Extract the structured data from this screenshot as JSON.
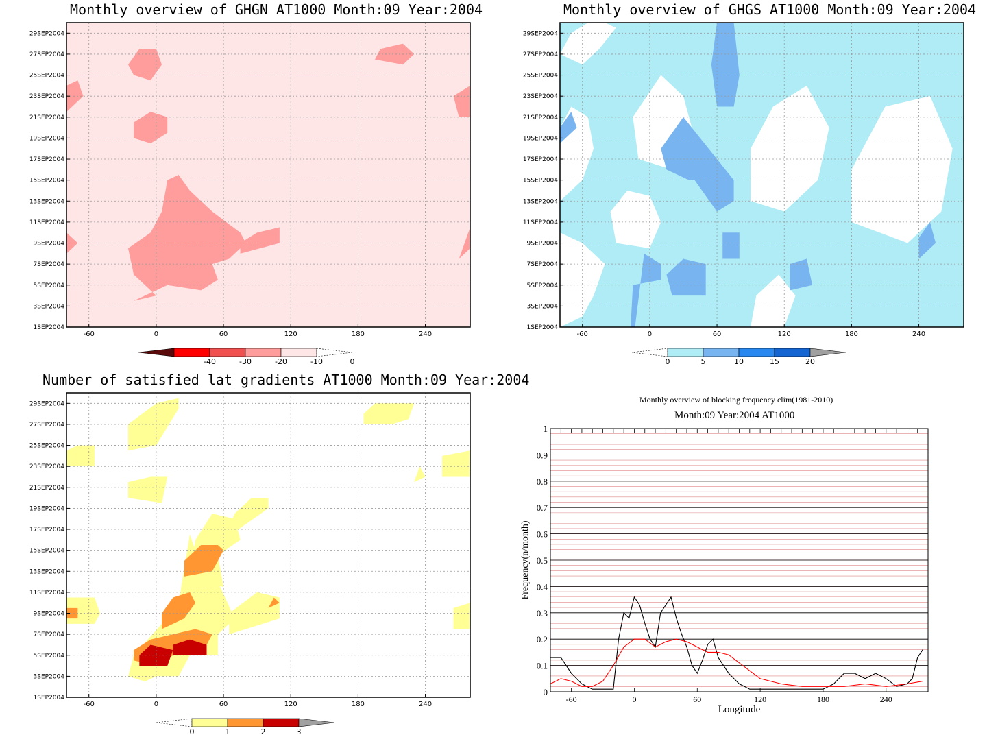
{
  "chart_data": [
    {
      "type": "heatmap",
      "title": "Monthly overview of GHGN AT1000 Month:09 Year:2004",
      "x_ticks": [
        -60,
        0,
        60,
        120,
        180,
        240
      ],
      "xlim": [
        -80,
        280
      ],
      "y_ticks": [
        "1SEP2004",
        "3SEP2004",
        "5SEP2004",
        "7SEP2004",
        "9SEP2004",
        "11SEP2004",
        "13SEP2004",
        "15SEP2004",
        "17SEP2004",
        "19SEP2004",
        "21SEP2004",
        "23SEP2004",
        "25SEP2004",
        "27SEP2004",
        "29SEP2004"
      ],
      "colorbar": {
        "ticks": [
          "-40",
          "-30",
          "-20",
          "-10",
          "0"
        ],
        "colors": [
          "#5a0a0a",
          "#ff0000",
          "#f05050",
          "#ff9c9c",
          "#ffe6e6"
        ]
      },
      "background_color": "#ffe6e6",
      "grid": true,
      "regions": [
        {
          "fill": "#ff9c9c",
          "x": [
            -20,
            10,
            40,
            55,
            50,
            65,
            80,
            75,
            50,
            30,
            20,
            10,
            5,
            -5,
            -25,
            -20,
            -10,
            0
          ],
          "y": [
            3.5,
            5,
            4.5,
            5.5,
            7,
            7.5,
            9,
            10,
            12,
            14,
            15.5,
            15,
            12,
            10,
            8.5,
            6,
            5,
            4
          ]
        },
        {
          "fill": "#ff9c9c",
          "x": [
            -20,
            -5,
            10,
            10,
            -5,
            -20
          ],
          "y": [
            19,
            18.5,
            19.5,
            21,
            21.5,
            20.5
          ]
        },
        {
          "fill": "#ff9c9c",
          "x": [
            -20,
            -5,
            5,
            0,
            -15,
            -25
          ],
          "y": [
            25,
            24.5,
            26,
            27.5,
            27.5,
            26
          ]
        },
        {
          "fill": "#ff9c9c",
          "x": [
            -80,
            -65,
            -70,
            -80
          ],
          "y": [
            21.5,
            23,
            24.5,
            24
          ]
        },
        {
          "fill": "#ff9c9c",
          "x": [
            -80,
            -70,
            -80
          ],
          "y": [
            8,
            9,
            10
          ]
        },
        {
          "fill": "#ff9c9c",
          "x": [
            270,
            280,
            280,
            265
          ],
          "y": [
            21,
            21,
            24,
            23
          ]
        },
        {
          "fill": "#ff9c9c",
          "x": [
            270,
            280,
            280
          ],
          "y": [
            7.5,
            8.5,
            10.5
          ]
        },
        {
          "fill": "#ff9c9c",
          "x": [
            195,
            220,
            230,
            220,
            200
          ],
          "y": [
            26.5,
            26,
            27,
            28,
            27.5
          ]
        },
        {
          "fill": "#ff9c9c",
          "x": [
            75,
            110,
            110,
            90,
            75
          ],
          "y": [
            8,
            9,
            10.5,
            10,
            9
          ]
        },
        {
          "fill": "#ff9c9c",
          "x": [
            0,
            40,
            55,
            40,
            15,
            0
          ],
          "y": [
            9.5,
            9,
            10,
            11.5,
            11,
            10
          ]
        }
      ]
    },
    {
      "type": "heatmap",
      "title": "Monthly overview of GHGS AT1000 Month:09 Year:2004",
      "x_ticks": [
        -60,
        0,
        60,
        120,
        180,
        240
      ],
      "xlim": [
        -80,
        280
      ],
      "y_ticks": [
        "1SEP2004",
        "3SEP2004",
        "5SEP2004",
        "7SEP2004",
        "9SEP2004",
        "11SEP2004",
        "13SEP2004",
        "15SEP2004",
        "17SEP2004",
        "19SEP2004",
        "21SEP2004",
        "23SEP2004",
        "25SEP2004",
        "27SEP2004",
        "29SEP2004"
      ],
      "colorbar": {
        "ticks": [
          "0",
          "5",
          "10",
          "15",
          "20"
        ],
        "colors": [
          "#b0ecf5",
          "#78b4f0",
          "#2888f0",
          "#1464d2",
          "#a0a0a0"
        ]
      },
      "background_color": "#b0ecf5",
      "grid": true,
      "regions": [
        {
          "fill": "#ffffff",
          "x": [
            -80,
            -60,
            -50,
            -55,
            -70,
            -80
          ],
          "y": [
            13,
            15,
            18,
            21,
            22,
            20
          ]
        },
        {
          "fill": "#ffffff",
          "x": [
            -80,
            -60,
            -50,
            -40,
            -60,
            -80
          ],
          "y": [
            1,
            2,
            4,
            7,
            9,
            10
          ]
        },
        {
          "fill": "#ffffff",
          "x": [
            -80,
            -60,
            -45,
            -30,
            -40,
            -55,
            -70
          ],
          "y": [
            27,
            26,
            27.5,
            29.5,
            30,
            30,
            29
          ]
        },
        {
          "fill": "#ffffff",
          "x": [
            -10,
            20,
            40,
            30,
            10,
            -15
          ],
          "y": [
            17,
            16,
            19,
            23,
            25,
            21
          ]
        },
        {
          "fill": "#ffffff",
          "x": [
            90,
            120,
            150,
            160,
            140,
            110,
            90
          ],
          "y": [
            13,
            12,
            15,
            20,
            24,
            22,
            18
          ]
        },
        {
          "fill": "#ffffff",
          "x": [
            180,
            230,
            260,
            270,
            250,
            210,
            180
          ],
          "y": [
            11,
            9,
            12,
            18,
            23,
            22,
            16
          ]
        },
        {
          "fill": "#ffffff",
          "x": [
            -30,
            0,
            10,
            0,
            -20,
            -35
          ],
          "y": [
            9,
            8.5,
            11,
            13.5,
            14,
            12
          ]
        },
        {
          "fill": "#ffffff",
          "x": [
            90,
            120,
            130,
            115,
            95
          ],
          "y": [
            1,
            1,
            4,
            6,
            4
          ]
        },
        {
          "fill": "#78b4f0",
          "x": [
            40,
            60,
            75,
            75,
            60,
            45,
            30,
            10,
            15,
            35
          ],
          "y": [
            15,
            12,
            13,
            15,
            17,
            19,
            21,
            18,
            16,
            15
          ]
        },
        {
          "fill": "#78b4f0",
          "x": [
            60,
            75,
            80,
            75,
            60,
            55
          ],
          "y": [
            22,
            22,
            25,
            30,
            30,
            26
          ]
        },
        {
          "fill": "#78b4f0",
          "x": [
            -15,
            10,
            10,
            -5,
            -20
          ],
          "y": [
            5,
            5.5,
            7,
            8,
            -5
          ]
        },
        {
          "fill": "#78b4f0",
          "x": [
            20,
            50,
            50,
            30,
            15
          ],
          "y": [
            4,
            4,
            7,
            7.5,
            6
          ]
        },
        {
          "fill": "#78b4f0",
          "x": [
            -80,
            -65,
            -70,
            -80
          ],
          "y": [
            18.5,
            20,
            21.5,
            20
          ]
        },
        {
          "fill": "#78b4f0",
          "x": [
            65,
            80,
            80,
            65
          ],
          "y": [
            7.5,
            7.5,
            10,
            10
          ]
        },
        {
          "fill": "#78b4f0",
          "x": [
            125,
            145,
            140,
            125
          ],
          "y": [
            4.5,
            5,
            7.5,
            7
          ]
        },
        {
          "fill": "#78b4f0",
          "x": [
            240,
            255,
            250,
            240
          ],
          "y": [
            7.5,
            9,
            11,
            9.5
          ]
        }
      ]
    },
    {
      "type": "heatmap",
      "title": "Number of satisfied lat gradients AT1000 Month:09 Year:2004",
      "x_ticks": [
        -60,
        0,
        60,
        120,
        180,
        240
      ],
      "xlim": [
        -80,
        280
      ],
      "y_ticks": [
        "1SEP2004",
        "3SEP2004",
        "5SEP2004",
        "7SEP2004",
        "9SEP2004",
        "11SEP2004",
        "13SEP2004",
        "15SEP2004",
        "17SEP2004",
        "19SEP2004",
        "21SEP2004",
        "23SEP2004",
        "25SEP2004",
        "27SEP2004",
        "29SEP2004"
      ],
      "colorbar": {
        "ticks": [
          "0",
          "1",
          "2",
          "3"
        ],
        "colors": [
          "#ffff96",
          "#ff9632",
          "#c80000",
          "#a0a0a0"
        ]
      },
      "background_color": "#ffffff",
      "grid": true,
      "regions": [
        {
          "fill": "#ffff96",
          "x": [
            -25,
            -10,
            0,
            20,
            30,
            55,
            55,
            70,
            55,
            35,
            30,
            20,
            5,
            -20
          ],
          "y": [
            3,
            2.5,
            3,
            3,
            5,
            5,
            7,
            8.5,
            12,
            15,
            16.5,
            10,
            8,
            5
          ]
        },
        {
          "fill": "#ffff96",
          "x": [
            30,
            60,
            55,
            75,
            70,
            50,
            35
          ],
          "y": [
            12.5,
            11.5,
            14.5,
            16,
            18,
            18.5,
            16
          ]
        },
        {
          "fill": "#ffff96",
          "x": [
            60,
            100,
            100,
            85,
            70
          ],
          "y": [
            16,
            19,
            20,
            20,
            18.5
          ]
        },
        {
          "fill": "#ffff96",
          "x": [
            -25,
            5,
            10,
            -5,
            -25
          ],
          "y": [
            20,
            19.5,
            22,
            22,
            21.5
          ]
        },
        {
          "fill": "#ffff96",
          "x": [
            -25,
            0,
            20,
            20,
            0,
            -25
          ],
          "y": [
            24.5,
            25,
            28.5,
            29.5,
            29,
            27
          ]
        },
        {
          "fill": "#ffff96",
          "x": [
            -80,
            -55,
            -55,
            -70,
            -80
          ],
          "y": [
            23,
            23,
            25,
            25,
            24.5
          ]
        },
        {
          "fill": "#ffff96",
          "x": [
            -80,
            -55,
            -50,
            -55,
            -80
          ],
          "y": [
            8,
            8,
            9,
            10.5,
            10.5
          ]
        },
        {
          "fill": "#ffff96",
          "x": [
            65,
            110,
            110,
            90,
            65
          ],
          "y": [
            7,
            8.5,
            10.5,
            11,
            9
          ]
        },
        {
          "fill": "#ffff96",
          "x": [
            185,
            210,
            225,
            230,
            195,
            185
          ],
          "y": [
            27,
            27,
            27.5,
            29,
            29,
            28
          ]
        },
        {
          "fill": "#ffff96",
          "x": [
            230,
            240,
            235
          ],
          "y": [
            21.5,
            22,
            23
          ]
        },
        {
          "fill": "#ffff96",
          "x": [
            255,
            280,
            280,
            255
          ],
          "y": [
            22,
            22,
            24.5,
            24
          ]
        },
        {
          "fill": "#ffff96",
          "x": [
            265,
            280,
            280,
            265
          ],
          "y": [
            7.5,
            7.5,
            10,
            9.5
          ]
        },
        {
          "fill": "#ff9632",
          "x": [
            -20,
            0,
            15,
            40,
            50,
            35,
            15,
            -5,
            -20
          ],
          "y": [
            4.5,
            4,
            5,
            5,
            7,
            7.5,
            7,
            6.5,
            5.5
          ]
        },
        {
          "fill": "#ff9632",
          "x": [
            5,
            25,
            35,
            30,
            15,
            5
          ],
          "y": [
            7.5,
            8.5,
            10,
            11,
            10.5,
            9
          ]
        },
        {
          "fill": "#ff9632",
          "x": [
            25,
            50,
            60,
            55,
            40,
            25
          ],
          "y": [
            12.5,
            13,
            15,
            15.5,
            15.5,
            14
          ]
        },
        {
          "fill": "#ff9632",
          "x": [
            -80,
            -70,
            -70,
            -80
          ],
          "y": [
            8.5,
            8.5,
            9.5,
            9.5
          ]
        },
        {
          "fill": "#ff9632",
          "x": [
            100,
            110,
            105
          ],
          "y": [
            9.5,
            10,
            10.5
          ]
        },
        {
          "fill": "#c80000",
          "x": [
            -15,
            10,
            15,
            -5,
            -15
          ],
          "y": [
            4,
            4,
            5.5,
            6,
            5
          ]
        },
        {
          "fill": "#c80000",
          "x": [
            15,
            45,
            45,
            30,
            15
          ],
          "y": [
            5,
            5,
            6,
            6.5,
            6
          ]
        }
      ]
    },
    {
      "type": "line",
      "title": "Monthly overview of blocking frequency clim(1981-2010)",
      "subtitle": "Month:09 Year:2004  AT1000",
      "xlabel": "Longitude",
      "ylabel": "Frequency(n/month)",
      "xlim": [
        -80,
        280
      ],
      "ylim": [
        0,
        1
      ],
      "x_ticks": [
        -60,
        0,
        60,
        120,
        180,
        240
      ],
      "y_ticks": [
        0,
        0.1,
        0.2,
        0.3,
        0.4,
        0.5,
        0.6,
        0.7,
        0.8,
        0.9,
        1
      ],
      "grid": true,
      "series": [
        {
          "color": "#000000",
          "x": [
            -80,
            -70,
            -60,
            -50,
            -40,
            -30,
            -20,
            -15,
            -10,
            -5,
            0,
            5,
            10,
            15,
            20,
            25,
            30,
            35,
            40,
            45,
            50,
            55,
            60,
            65,
            70,
            75,
            80,
            85,
            90,
            95,
            100,
            105,
            110,
            120,
            140,
            160,
            180,
            190,
            200,
            210,
            220,
            230,
            240,
            250,
            260,
            265,
            270,
            275
          ],
          "y": [
            0.13,
            0.13,
            0.07,
            0.03,
            0.01,
            0.01,
            0.01,
            0.2,
            0.3,
            0.28,
            0.36,
            0.33,
            0.26,
            0.2,
            0.17,
            0.3,
            0.33,
            0.36,
            0.28,
            0.22,
            0.17,
            0.1,
            0.07,
            0.12,
            0.18,
            0.2,
            0.13,
            0.1,
            0.07,
            0.05,
            0.03,
            0.02,
            0.01,
            0.01,
            0.01,
            0.01,
            0.01,
            0.03,
            0.07,
            0.07,
            0.05,
            0.07,
            0.05,
            0.02,
            0.03,
            0.05,
            0.13,
            0.16
          ]
        },
        {
          "color": "#ff0000",
          "x": [
            -80,
            -70,
            -60,
            -50,
            -40,
            -30,
            -20,
            -10,
            0,
            10,
            20,
            30,
            40,
            50,
            60,
            70,
            80,
            90,
            100,
            110,
            120,
            140,
            160,
            180,
            200,
            220,
            240,
            260,
            275
          ],
          "y": [
            0.03,
            0.05,
            0.04,
            0.02,
            0.02,
            0.04,
            0.1,
            0.17,
            0.2,
            0.2,
            0.17,
            0.19,
            0.2,
            0.19,
            0.17,
            0.15,
            0.15,
            0.14,
            0.11,
            0.08,
            0.05,
            0.03,
            0.02,
            0.02,
            0.02,
            0.03,
            0.02,
            0.03,
            0.04
          ]
        }
      ]
    }
  ]
}
